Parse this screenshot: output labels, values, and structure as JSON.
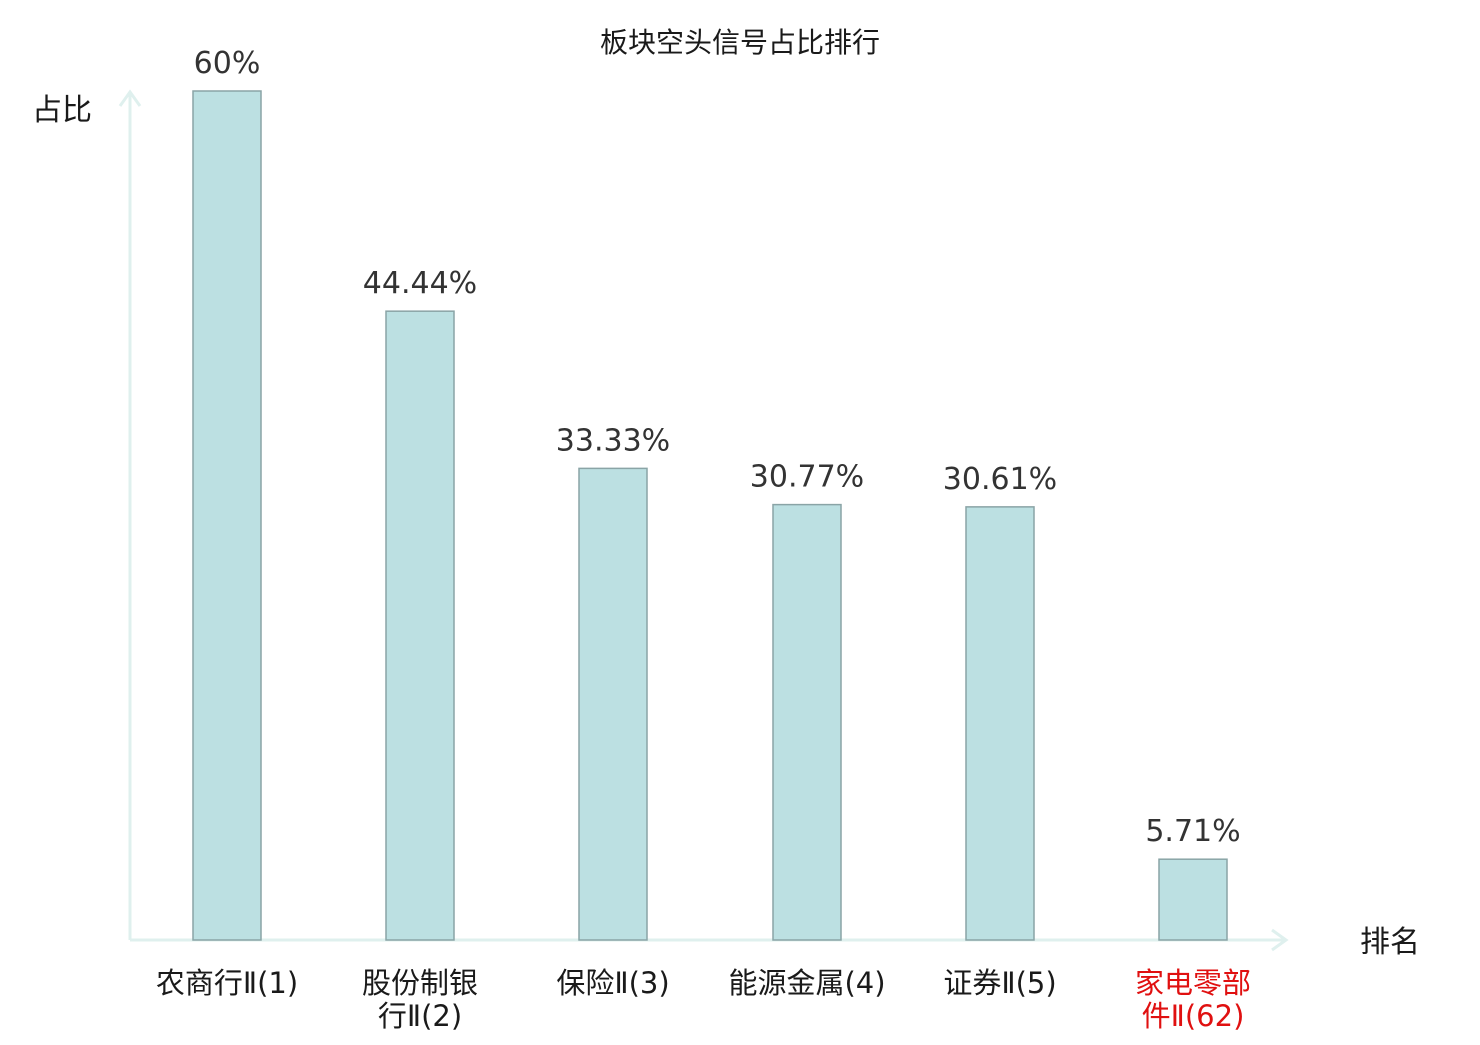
{
  "chart_data": {
    "type": "bar",
    "title": "板块空头信号占比排行",
    "ylabel": "占比",
    "xlabel": "排名",
    "ylim": [
      0,
      60
    ],
    "grid": false,
    "categories": [
      [
        "农商行Ⅱ(1)"
      ],
      [
        "股份制银",
        "行Ⅱ(2)"
      ],
      [
        "保险Ⅱ(3)"
      ],
      [
        "能源金属(4)"
      ],
      [
        "证券Ⅱ(5)"
      ],
      [
        "家电零部",
        "件Ⅱ(62)"
      ]
    ],
    "values": [
      60,
      44.44,
      33.33,
      30.77,
      30.61,
      5.71
    ],
    "value_labels": [
      "60%",
      "44.44%",
      "33.33%",
      "30.77%",
      "30.61%",
      "5.71%"
    ],
    "highlighted_category_index": 5
  },
  "colors": {
    "bar_fill": "#bce0e2",
    "bar_stroke": "#8aa4a6",
    "axis": "#dff0ee",
    "label": "#1a1a1a",
    "highlight_label": "#e01010"
  }
}
